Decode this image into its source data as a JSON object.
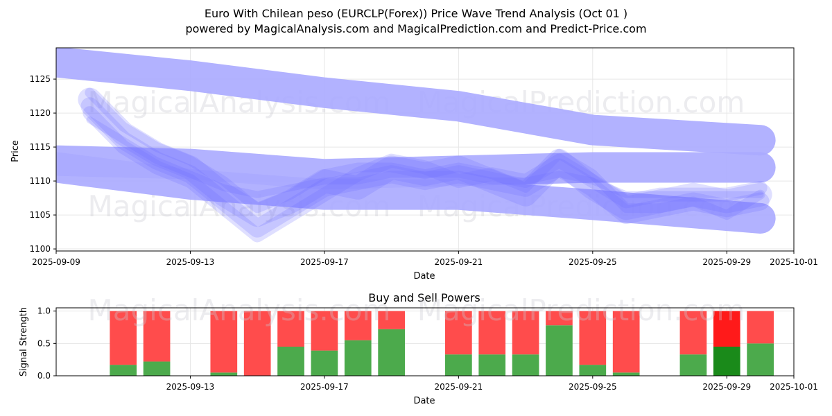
{
  "header": {
    "title_line1": "Euro With Chilean peso (EURCLP(Forex)) Price Wave Trend Analysis (Oct 01 )",
    "title_line2": "powered by MagicalAnalysis.com and MagicalPrediction.com and Predict-Price.com"
  },
  "watermarks": [
    "MagicalAnalysis.com",
    "MagicalPrediction.com"
  ],
  "colors": {
    "wave": "#6f6fff",
    "band": "#aaaaff",
    "buy": "#4caa4c",
    "sell": "#ff4c4c",
    "buy_hl": "#1a8a1a",
    "sell_hl": "#ff1a1a"
  },
  "chart_data": [
    {
      "type": "line",
      "title": "",
      "xlabel": "Date",
      "ylabel": "Price",
      "xlim": [
        "2025-09-09",
        "2025-10-01"
      ],
      "ylim": [
        1099.7,
        1129.6
      ],
      "x_ticks": [
        "2025-09-09",
        "2025-09-13",
        "2025-09-17",
        "2025-09-21",
        "2025-09-25",
        "2025-09-29",
        "2025-10-01"
      ],
      "y_ticks": [
        1100,
        1105,
        1110,
        1115,
        1120,
        1125
      ],
      "bands": [
        {
          "name": "upper band",
          "x": [
            "2025-09-09",
            "2025-09-13",
            "2025-09-17",
            "2025-09-21",
            "2025-09-25",
            "2025-09-30"
          ],
          "y": [
            1127.5,
            1125.5,
            1123,
            1121,
            1117.5,
            1116
          ]
        },
        {
          "name": "middle band",
          "x": [
            "2025-09-09",
            "2025-09-13",
            "2025-09-17",
            "2025-09-21",
            "2025-09-25",
            "2025-09-30"
          ],
          "y": [
            1113,
            1112.5,
            1111,
            1111.5,
            1112,
            1112
          ]
        },
        {
          "name": "lower band",
          "x": [
            "2025-09-09",
            "2025-09-13",
            "2025-09-17",
            "2025-09-21",
            "2025-09-25",
            "2025-09-30"
          ],
          "y": [
            1112,
            1109.5,
            1108,
            1108,
            1106.5,
            1104.5
          ]
        }
      ],
      "series": [
        {
          "name": "wave 1",
          "x": [
            "2025-09-10",
            "2025-09-11",
            "2025-09-12",
            "2025-09-13",
            "2025-09-14",
            "2025-09-15",
            "2025-09-16",
            "2025-09-17",
            "2025-09-18",
            "2025-09-19",
            "2025-09-20",
            "2025-09-21",
            "2025-09-22",
            "2025-09-23",
            "2025-09-24",
            "2025-09-25",
            "2025-09-26",
            "2025-09-27",
            "2025-09-28",
            "2025-09-29",
            "2025-09-30"
          ],
          "y": [
            1122,
            1117,
            1114,
            1112,
            1108,
            1105,
            1107,
            1110,
            1109,
            1112,
            1111,
            1112,
            1110,
            1108,
            1113,
            1109,
            1106,
            1107,
            1108,
            1107,
            1108
          ]
        },
        {
          "name": "wave 2",
          "x": [
            "2025-09-10",
            "2025-09-11",
            "2025-09-12",
            "2025-09-13",
            "2025-09-14",
            "2025-09-15",
            "2025-09-16",
            "2025-09-17",
            "2025-09-18",
            "2025-09-19",
            "2025-09-20",
            "2025-09-21",
            "2025-09-22",
            "2025-09-23",
            "2025-09-24",
            "2025-09-25",
            "2025-09-26",
            "2025-09-27",
            "2025-09-28",
            "2025-09-29",
            "2025-09-30"
          ],
          "y": [
            1121,
            1116,
            1113,
            1111,
            1107,
            1103,
            1106,
            1109,
            1110,
            1111,
            1110,
            1111,
            1110,
            1109,
            1112,
            1109,
            1105,
            1106,
            1107,
            1106,
            1107
          ]
        },
        {
          "name": "wave 3",
          "x": [
            "2025-09-10",
            "2025-09-11",
            "2025-09-12",
            "2025-09-13",
            "2025-09-14",
            "2025-09-15",
            "2025-09-16",
            "2025-09-17",
            "2025-09-18",
            "2025-09-19",
            "2025-09-20",
            "2025-09-21",
            "2025-09-22",
            "2025-09-23",
            "2025-09-24",
            "2025-09-25",
            "2025-09-26",
            "2025-09-27",
            "2025-09-28",
            "2025-09-29",
            "2025-09-30"
          ],
          "y": [
            1120,
            1115,
            1112,
            1110,
            1106,
            1102,
            1105,
            1108,
            1111,
            1113,
            1112,
            1110,
            1111,
            1110,
            1113,
            1110,
            1107,
            1108,
            1108,
            1108,
            1109
          ]
        },
        {
          "name": "wave 4",
          "x": [
            "2025-09-10",
            "2025-09-11",
            "2025-09-12",
            "2025-09-13",
            "2025-09-14",
            "2025-09-15",
            "2025-09-16",
            "2025-09-17",
            "2025-09-18",
            "2025-09-19",
            "2025-09-20",
            "2025-09-21",
            "2025-09-22",
            "2025-09-23",
            "2025-09-24",
            "2025-09-25",
            "2025-09-26",
            "2025-09-27",
            "2025-09-28",
            "2025-09-29",
            "2025-09-30"
          ],
          "y": [
            1123,
            1118,
            1115,
            1113,
            1110,
            1106,
            1108,
            1111,
            1112,
            1112,
            1111,
            1112,
            1111,
            1109,
            1114,
            1111,
            1106,
            1106,
            1107,
            1105,
            1108
          ]
        },
        {
          "name": "wave 5",
          "x": [
            "2025-09-10",
            "2025-09-11",
            "2025-09-12",
            "2025-09-13",
            "2025-09-14",
            "2025-09-15",
            "2025-09-16",
            "2025-09-17",
            "2025-09-18",
            "2025-09-19",
            "2025-09-20",
            "2025-09-21",
            "2025-09-22",
            "2025-09-23",
            "2025-09-24",
            "2025-09-25",
            "2025-09-26",
            "2025-09-27",
            "2025-09-28",
            "2025-09-29",
            "2025-09-30"
          ],
          "y": [
            1119,
            1116,
            1113,
            1111,
            1109,
            1108,
            1109,
            1110,
            1110,
            1111,
            1111,
            1111,
            1110,
            1110,
            1111,
            1110,
            1108,
            1108,
            1108,
            1108,
            1108
          ]
        }
      ]
    },
    {
      "type": "bar",
      "stacked": true,
      "title": "Buy and Sell Powers",
      "xlabel": "Date",
      "ylabel": "Signal Strength",
      "xlim": [
        "2025-09-09",
        "2025-10-01"
      ],
      "ylim": [
        0,
        1.05
      ],
      "x_ticks": [
        "2025-09-13",
        "2025-09-17",
        "2025-09-21",
        "2025-09-25",
        "2025-09-29",
        "2025-10-01"
      ],
      "y_ticks": [
        0.0,
        0.5,
        1.0
      ],
      "y_tick_labels": [
        "0.0",
        "0.5",
        "1.0"
      ],
      "categories": [
        "2025-09-11",
        "2025-09-12",
        "2025-09-14",
        "2025-09-15",
        "2025-09-16",
        "2025-09-17",
        "2025-09-18",
        "2025-09-19",
        "2025-09-21",
        "2025-09-22",
        "2025-09-23",
        "2025-09-24",
        "2025-09-25",
        "2025-09-26",
        "2025-09-28",
        "2025-09-29",
        "2025-09-30"
      ],
      "series": [
        {
          "name": "Buy",
          "values": [
            0.17,
            0.22,
            0.05,
            0.0,
            0.45,
            0.39,
            0.55,
            0.72,
            0.33,
            0.33,
            0.33,
            0.78,
            0.17,
            0.05,
            0.33,
            0.45,
            0.5
          ]
        },
        {
          "name": "Sell",
          "values": [
            0.83,
            0.78,
            0.95,
            1.0,
            0.55,
            0.61,
            0.45,
            0.28,
            0.67,
            0.67,
            0.67,
            0.22,
            0.83,
            0.95,
            0.67,
            0.55,
            0.5
          ]
        }
      ],
      "highlight": "2025-09-29"
    }
  ]
}
